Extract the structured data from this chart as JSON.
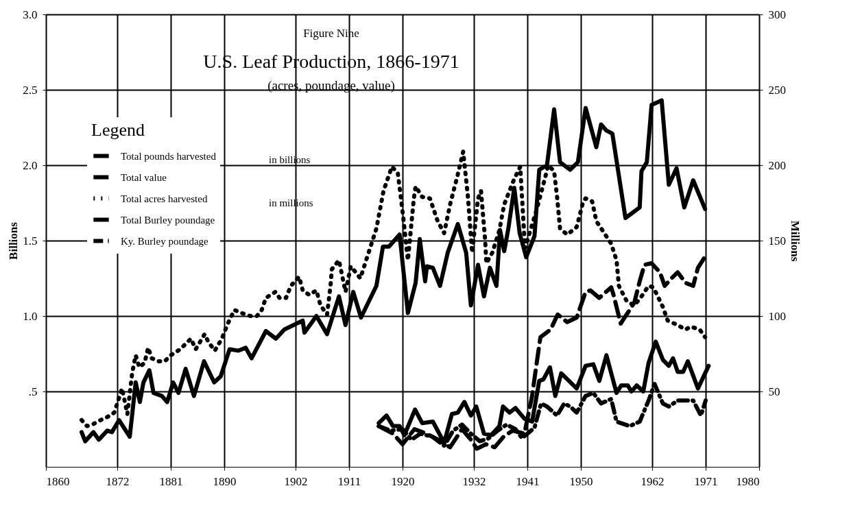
{
  "chart_data": {
    "type": "line",
    "title": "U.S. Leaf Production, 1866-1971",
    "subtitle": "(acres, poundage, value)",
    "ylabel": "Billions",
    "y2label": "Millions",
    "legend_title": "Legend",
    "annotations": [
      "Figure Nine",
      "in billions",
      "in millions"
    ],
    "xlim": [
      1860,
      1980
    ],
    "xticks": [
      1860,
      1872,
      1881,
      1890,
      1902,
      1911,
      1920,
      1932,
      1941,
      1950,
      1962,
      1971,
      1980
    ],
    "ylim": [
      0,
      3
    ],
    "yticks": [
      {
        "value": 0.5,
        "label": ".5"
      },
      {
        "value": 1,
        "label": "1.0"
      },
      {
        "value": 1.5,
        "label": "1.5"
      },
      {
        "value": 2,
        "label": "2.0"
      },
      {
        "value": 2.5,
        "label": "2.5"
      },
      {
        "value": 3,
        "label": "3.0"
      }
    ],
    "y2lim": [
      0,
      300
    ],
    "y2ticks": [
      50,
      100,
      150,
      200,
      250,
      300
    ],
    "grid": true,
    "legend": "top left",
    "marker": "none",
    "series": [
      {
        "name": "Total pounds harvested",
        "color": "#000000",
        "line_style": "solid",
        "x": [
          1866.0,
          1866.6,
          1868.0,
          1868.9,
          1870.3,
          1871.1,
          1872.3,
          1874.1,
          1875.1,
          1875.8,
          1876.4,
          1877.4,
          1878.1,
          1879.5,
          1880.4,
          1881.4,
          1882.3,
          1883.5,
          1884.9,
          1886.6,
          1888.3,
          1889.4,
          1890.9,
          1892.4,
          1893.6,
          1894.6,
          1897.0,
          1898.7,
          1900.1,
          1903.2,
          1903.5,
          1905.5,
          1907.3,
          1909.3,
          1910.4,
          1911.7,
          1913.0,
          1915.6,
          1916.7,
          1917.7,
          1919.5,
          1920.9,
          1922.2,
          1922.9,
          1923.8,
          1924.1,
          1925.1,
          1926.3,
          1927.6,
          1929.3,
          1930.7,
          1931.5,
          1932.7,
          1933.7,
          1934.7,
          1935.8,
          1936.4,
          1937.1,
          1937.8,
          1938.8,
          1939.7,
          1940.8,
          1942.2,
          1943.0,
          1944.3,
          1945.5,
          1946.5,
          1948.2,
          1949.5,
          1950.8,
          1952.6,
          1953.4,
          1954.3,
          1955.3,
          1957.5,
          1959.9,
          1960.2,
          1961.1,
          1961.9,
          1963.6,
          1964.8,
          1966.1,
          1967.4,
          1968.9,
          1970.9
        ],
        "values": [
          0.23,
          0.17,
          0.23,
          0.18,
          0.24,
          0.23,
          0.31,
          0.2,
          0.56,
          0.43,
          0.56,
          0.64,
          0.49,
          0.47,
          0.43,
          0.56,
          0.49,
          0.65,
          0.47,
          0.7,
          0.56,
          0.6,
          0.78,
          0.77,
          0.79,
          0.72,
          0.9,
          0.85,
          0.91,
          0.97,
          0.89,
          1.0,
          0.88,
          1.13,
          0.94,
          1.16,
          0.99,
          1.2,
          1.46,
          1.46,
          1.54,
          1.02,
          1.22,
          1.51,
          1.23,
          1.33,
          1.32,
          1.2,
          1.42,
          1.61,
          1.42,
          1.07,
          1.34,
          1.13,
          1.32,
          1.2,
          1.57,
          1.43,
          1.58,
          1.85,
          1.55,
          1.39,
          1.53,
          1.97,
          2.0,
          2.37,
          2.02,
          1.97,
          2.02,
          2.38,
          2.12,
          2.27,
          2.23,
          2.21,
          1.65,
          1.72,
          1.96,
          2.02,
          2.4,
          2.43,
          1.87,
          1.98,
          1.72,
          1.9,
          1.71
        ]
      },
      {
        "name": "Total value",
        "color": "#000000",
        "line_style": "dashed",
        "x": [
          1916.0,
          1918.4,
          1920.0,
          1922.0,
          1924.0,
          1926.0,
          1928.0,
          1930.0,
          1931.5,
          1932.5,
          1934.0,
          1935.5,
          1937.0,
          1938.5,
          1940.5,
          1941.8,
          1942.5,
          1943.2,
          1944.9,
          1946.1,
          1947.7,
          1949.3,
          1950.8,
          1951.6,
          1953.1,
          1955.1,
          1955.5,
          1956.7,
          1958.2,
          1959.0,
          1959.9,
          1960.7,
          1961.9,
          1963.3,
          1964.1,
          1965.5,
          1966.3,
          1967.6,
          1968.9,
          1969.7,
          1971.0
        ],
        "values": [
          0.27,
          0.22,
          0.15,
          0.25,
          0.22,
          0.18,
          0.13,
          0.25,
          0.18,
          0.12,
          0.15,
          0.13,
          0.2,
          0.24,
          0.22,
          0.47,
          0.67,
          0.86,
          0.91,
          1.01,
          0.96,
          0.99,
          1.16,
          1.17,
          1.12,
          1.19,
          1.14,
          0.95,
          1.04,
          1.09,
          1.23,
          1.34,
          1.35,
          1.29,
          1.2,
          1.26,
          1.29,
          1.22,
          1.2,
          1.32,
          1.4
        ]
      },
      {
        "name": "Total acres harvested",
        "color": "#000000",
        "line_style": "dotted",
        "axis": "y2",
        "x": [
          1866.0,
          1866.9,
          1867.8,
          1869.2,
          1870.3,
          1871.5,
          1872.4,
          1872.8,
          1873.7,
          1874.5,
          1875.1,
          1875.7,
          1876.6,
          1877.2,
          1877.8,
          1878.9,
          1880.0,
          1881.0,
          1882.6,
          1884.4,
          1885.2,
          1886.7,
          1887.3,
          1888.4,
          1889.6,
          1890.6,
          1891.7,
          1892.9,
          1894.4,
          1895.5,
          1896.3,
          1897.0,
          1898.6,
          1899.3,
          1900.4,
          1901.2,
          1902.6,
          1903.2,
          1904.3,
          1905.5,
          1906.2,
          1907.3,
          1907.9,
          1908.1,
          1909.3,
          1910.4,
          1911.3,
          1912.9,
          1914.2,
          1915.6,
          1916.8,
          1918.2,
          1919.2,
          1920.1,
          1920.9,
          1921.9,
          1922.2,
          1923.3,
          1924.6,
          1925.9,
          1927.0,
          1928.0,
          1929.3,
          1930.2,
          1931.0,
          1931.7,
          1932.2,
          1932.7,
          1933.2,
          1933.9,
          1934.1,
          1935.1,
          1936.3,
          1937.1,
          1938.8,
          1939.8,
          1940.6,
          1942.6,
          1944.0,
          1944.5,
          1945.5,
          1946.0,
          1946.5,
          1947.7,
          1949.3,
          1950.4,
          1950.8,
          1951.9,
          1952.6,
          1955.1,
          1956.0,
          1956.4,
          1957.7,
          1959.0,
          1960.2,
          1961.4,
          1962.2,
          1963.8,
          1964.6,
          1966.3,
          1967.6,
          1968.5,
          1970.0,
          1970.9
        ],
        "values": [
          31,
          27,
          28,
          31,
          33,
          36,
          47,
          52,
          35,
          62,
          74,
          66,
          69,
          79,
          72,
          70,
          70,
          74,
          78,
          85,
          78,
          88,
          83,
          77,
          85,
          95,
          104,
          102,
          100,
          100,
          104,
          112,
          116,
          112,
          112,
          120,
          126,
          117,
          114,
          117,
          107,
          101,
          121,
          131,
          137,
          116,
          133,
          125,
          141,
          158,
          183,
          199,
          195,
          166,
          137,
          178,
          186,
          179,
          178,
          163,
          155,
          174,
          194,
          209,
          179,
          142,
          160,
          178,
          183,
          150,
          135,
          142,
          157,
          174,
          191,
          199,
          145,
          171,
          192,
          200,
          196,
          179,
          158,
          154,
          159,
          176,
          178,
          176,
          163,
          148,
          137,
          120,
          110,
          107,
          113,
          120,
          119,
          106,
          97,
          94,
          91,
          93,
          91,
          86
        ]
      },
      {
        "name": "Total Burley poundage",
        "color": "#000000",
        "line_style": "solid",
        "axis": "y2",
        "x": [
          1916.0,
          1917.3,
          1918.4,
          1919.5,
          1920.3,
          1922.1,
          1923.3,
          1925.1,
          1927.0,
          1928.3,
          1929.3,
          1930.4,
          1931.5,
          1932.4,
          1933.7,
          1934.9,
          1936.3,
          1936.9,
          1938.0,
          1939.0,
          1940.5,
          1941.8,
          1943.0,
          1943.7,
          1944.8,
          1945.7,
          1946.7,
          1949.3,
          1950.8,
          1952.1,
          1953.1,
          1954.3,
          1956.0,
          1956.8,
          1957.9,
          1958.5,
          1959.4,
          1960.5,
          1961.4,
          1962.6,
          1963.8,
          1964.8,
          1965.5,
          1966.3,
          1967.2,
          1968.0,
          1969.7,
          1971.5
        ],
        "values": [
          29,
          34,
          27,
          27,
          21,
          38,
          29,
          30,
          16,
          35,
          36,
          43,
          34,
          40,
          22,
          21,
          27,
          40,
          36,
          39,
          32,
          30,
          57,
          58,
          66,
          47,
          62,
          52,
          67,
          68,
          57,
          74,
          49,
          54,
          54,
          50,
          54,
          50,
          69,
          83,
          71,
          67,
          72,
          63,
          63,
          70,
          52,
          67
        ]
      },
      {
        "name": "Ky. Burley poundage",
        "color": "#000000",
        "line_style": "dashdot",
        "axis": "y2",
        "x": [
          1916.0,
          1918.0,
          1920.0,
          1921.5,
          1923.0,
          1925.0,
          1927.0,
          1928.5,
          1930.0,
          1931.5,
          1933.0,
          1934.5,
          1936.0,
          1937.5,
          1939.0,
          1940.1,
          1942.2,
          1943.3,
          1944.3,
          1946.0,
          1947.2,
          1948.2,
          1949.3,
          1950.8,
          1952.1,
          1953.4,
          1955.1,
          1956.0,
          1958.2,
          1959.9,
          1961.4,
          1962.4,
          1963.8,
          1964.8,
          1966.3,
          1967.6,
          1968.9,
          1970.2,
          1971.0
        ],
        "values": [
          27,
          24,
          25,
          18,
          22,
          20,
          14,
          24,
          28,
          22,
          17,
          19,
          24,
          28,
          25,
          19,
          26,
          42,
          40,
          34,
          42,
          40,
          36,
          47,
          49,
          42,
          45,
          30,
          27,
          30,
          44,
          55,
          42,
          40,
          44,
          44,
          44,
          34,
          44
        ]
      }
    ]
  }
}
